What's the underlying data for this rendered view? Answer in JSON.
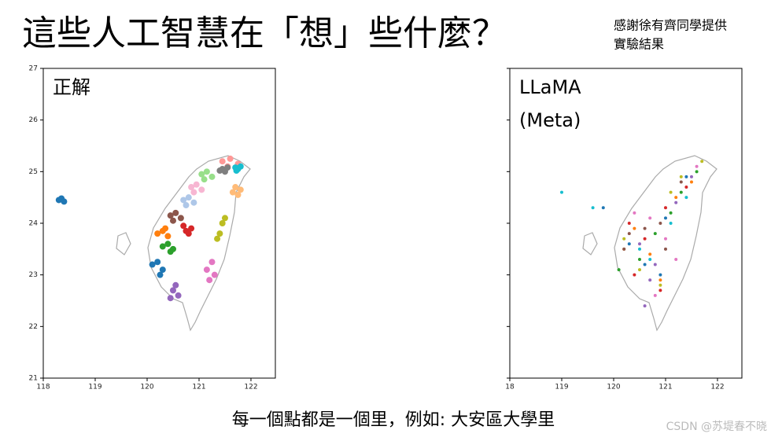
{
  "header": {
    "title": "這些人工智慧在「想」些什麼？",
    "note": [
      "感謝徐有齊同學提供",
      "實驗結果"
    ]
  },
  "chart_data": [
    {
      "type": "scatter",
      "annotation": [
        "正解"
      ],
      "xlim": [
        118,
        122.47
      ],
      "ylim": [
        21,
        27
      ],
      "xticks": [
        118,
        119,
        120,
        121,
        122
      ],
      "yticks": [
        21,
        22,
        23,
        24,
        25,
        26,
        27
      ],
      "show_ytick_labels": true,
      "series": [
        {
          "color": "#ff9896",
          "x": [
            121.45,
            121.6,
            121.75,
            121.55
          ],
          "y": [
            25.2,
            25.25,
            25.15,
            25.1
          ]
        },
        {
          "color": "#7f7f7f",
          "x": [
            121.45,
            121.5,
            121.55,
            121.4
          ],
          "y": [
            25.05,
            25.0,
            25.08,
            25.02
          ]
        },
        {
          "color": "#17becf",
          "x": [
            121.7,
            121.75,
            121.8,
            121.72
          ],
          "y": [
            25.08,
            25.05,
            25.1,
            25.02
          ]
        },
        {
          "color": "#98df8a",
          "x": [
            121.05,
            121.15,
            121.25,
            121.1
          ],
          "y": [
            24.95,
            25.0,
            24.9,
            24.85
          ]
        },
        {
          "color": "#f7b6d2",
          "x": [
            120.85,
            120.95,
            121.05,
            120.9
          ],
          "y": [
            24.7,
            24.75,
            24.65,
            24.6
          ]
        },
        {
          "color": "#aec7e8",
          "x": [
            120.7,
            120.8,
            120.9,
            120.75
          ],
          "y": [
            24.45,
            24.5,
            24.4,
            24.35
          ]
        },
        {
          "color": "#8c564b",
          "x": [
            120.45,
            120.55,
            120.65,
            120.5
          ],
          "y": [
            24.15,
            24.2,
            24.1,
            24.05
          ]
        },
        {
          "color": "#d62728",
          "x": [
            120.7,
            120.75,
            120.85,
            120.8
          ],
          "y": [
            23.95,
            23.85,
            23.9,
            23.8
          ]
        },
        {
          "color": "#ff7f0e",
          "x": [
            120.2,
            120.3,
            120.4,
            120.35
          ],
          "y": [
            23.8,
            23.85,
            23.75,
            23.9
          ]
        },
        {
          "color": "#2ca02c",
          "x": [
            120.3,
            120.4,
            120.5,
            120.45
          ],
          "y": [
            23.55,
            23.6,
            23.5,
            23.45
          ]
        },
        {
          "color": "#1f77b4",
          "x": [
            120.1,
            120.2,
            120.3,
            120.25
          ],
          "y": [
            23.2,
            23.25,
            23.1,
            23.0
          ]
        },
        {
          "color": "#9467bd",
          "x": [
            120.5,
            120.55,
            120.6,
            120.45
          ],
          "y": [
            22.7,
            22.8,
            22.6,
            22.55
          ]
        },
        {
          "color": "#e377c2",
          "x": [
            121.15,
            121.25,
            121.3,
            121.2
          ],
          "y": [
            23.1,
            23.25,
            23.0,
            22.9
          ]
        },
        {
          "color": "#ffbb78",
          "x": [
            121.7,
            121.75,
            121.65,
            121.8
          ],
          "y": [
            24.7,
            24.55,
            24.6,
            24.65
          ]
        },
        {
          "color": "#bcbd22",
          "x": [
            121.45,
            121.4,
            121.5,
            121.35
          ],
          "y": [
            24.0,
            23.8,
            24.1,
            23.7
          ]
        },
        {
          "color": "#1f77b4",
          "x": [
            118.3,
            118.35,
            118.4
          ],
          "y": [
            24.45,
            24.48,
            24.42
          ]
        }
      ]
    },
    {
      "type": "scatter",
      "annotation": [
        "LLaMA",
        "(Meta)"
      ],
      "xlim": [
        118,
        122.47
      ],
      "ylim": [
        21,
        27
      ],
      "xticks": [
        {
          "value": 118,
          "label": "18"
        },
        119,
        120,
        121,
        122
      ],
      "yticks": [
        21,
        22,
        23,
        24,
        25,
        26,
        27
      ],
      "show_ytick_labels": false,
      "series": [
        {
          "color": "#1f77b4",
          "x": [
            120.3,
            120.6,
            121.0,
            120.9,
            119.8,
            121.4
          ],
          "y": [
            23.6,
            23.2,
            24.1,
            23.0,
            24.3,
            24.9
          ]
        },
        {
          "color": "#ff7f0e",
          "x": [
            120.4,
            120.7,
            121.2,
            120.2,
            121.5,
            120.9
          ],
          "y": [
            23.9,
            23.4,
            24.5,
            23.5,
            24.8,
            22.9
          ]
        },
        {
          "color": "#2ca02c",
          "x": [
            120.5,
            121.1,
            120.8,
            121.3,
            120.1,
            121.6
          ],
          "y": [
            23.3,
            24.2,
            23.8,
            24.6,
            23.1,
            25.0
          ]
        },
        {
          "color": "#d62728",
          "x": [
            120.6,
            120.3,
            121.0,
            121.4,
            120.9,
            120.4
          ],
          "y": [
            23.7,
            24.0,
            24.3,
            24.7,
            22.7,
            23.0
          ]
        },
        {
          "color": "#9467bd",
          "x": [
            120.7,
            120.5,
            121.2,
            120.8,
            121.5,
            120.6
          ],
          "y": [
            22.9,
            23.6,
            24.4,
            23.2,
            24.9,
            22.4
          ]
        },
        {
          "color": "#8c564b",
          "x": [
            120.2,
            120.9,
            121.3,
            120.6,
            121.0,
            120.3
          ],
          "y": [
            23.5,
            24.0,
            24.8,
            23.9,
            23.5,
            23.8
          ]
        },
        {
          "color": "#e377c2",
          "x": [
            120.8,
            121.0,
            120.4,
            121.6,
            120.7,
            121.2
          ],
          "y": [
            22.6,
            23.7,
            24.2,
            25.1,
            24.1,
            23.3
          ]
        },
        {
          "color": "#17becf",
          "x": [
            119.0,
            119.6,
            120.5,
            121.4,
            120.7,
            121.1
          ],
          "y": [
            24.6,
            24.3,
            23.5,
            24.5,
            23.3,
            24.0
          ]
        },
        {
          "color": "#bcbd22",
          "x": [
            121.3,
            120.5,
            121.1,
            120.9,
            121.7,
            120.2
          ],
          "y": [
            24.9,
            23.1,
            24.6,
            22.8,
            25.2,
            23.7
          ]
        }
      ]
    }
  ],
  "caption": "每一個點都是一個里，例如: 大安區大學里",
  "watermark": "CSDN @苏堤春不晓"
}
